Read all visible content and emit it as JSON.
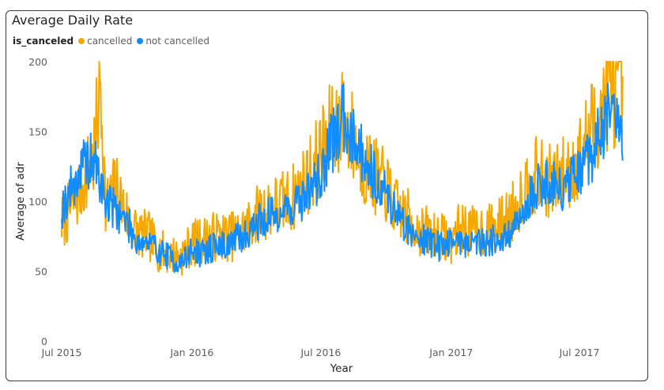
{
  "chart_data": {
    "type": "line",
    "title": "Average Daily Rate",
    "xlabel": "Year",
    "ylabel": "Average of adr",
    "ylim": [
      0,
      200
    ],
    "yticks": [
      "0",
      "50",
      "100",
      "150",
      "200"
    ],
    "xticks": [
      "Jul 2015",
      "Jan 2016",
      "Jul 2016",
      "Jan 2017",
      "Jul 2017"
    ],
    "xlim": [
      "2015-07-01",
      "2017-08-31"
    ],
    "legend": {
      "title": "is_canceled",
      "position": "top-left"
    },
    "grid": false,
    "series": [
      {
        "name": "cancelled",
        "color": "#F5A800",
        "x": [
          "2015-07-01",
          "2015-07-15",
          "2015-08-01",
          "2015-08-15",
          "2015-08-25",
          "2015-09-01",
          "2015-09-15",
          "2015-10-01",
          "2015-10-15",
          "2015-11-01",
          "2015-11-15",
          "2015-12-01",
          "2015-12-15",
          "2016-01-01",
          "2016-01-15",
          "2016-02-01",
          "2016-02-15",
          "2016-03-01",
          "2016-03-15",
          "2016-04-01",
          "2016-04-15",
          "2016-05-01",
          "2016-05-15",
          "2016-06-01",
          "2016-06-15",
          "2016-07-01",
          "2016-07-15",
          "2016-08-01",
          "2016-08-15",
          "2016-09-01",
          "2016-09-15",
          "2016-10-01",
          "2016-10-15",
          "2016-11-01",
          "2016-11-15",
          "2016-12-01",
          "2016-12-15",
          "2017-01-01",
          "2017-01-15",
          "2017-02-01",
          "2017-02-15",
          "2017-03-01",
          "2017-03-15",
          "2017-04-01",
          "2017-04-15",
          "2017-05-01",
          "2017-05-15",
          "2017-06-01",
          "2017-06-15",
          "2017-07-01",
          "2017-07-15",
          "2017-08-01",
          "2017-08-15",
          "2017-08-31"
        ],
        "values": [
          85,
          95,
          115,
          130,
          185,
          95,
          110,
          90,
          78,
          75,
          65,
          62,
          60,
          70,
          72,
          75,
          75,
          75,
          80,
          90,
          95,
          98,
          100,
          108,
          120,
          135,
          150,
          160,
          145,
          125,
          118,
          110,
          95,
          88,
          80,
          78,
          75,
          72,
          82,
          78,
          80,
          80,
          85,
          95,
          110,
          118,
          115,
          115,
          122,
          130,
          150,
          165,
          185,
          168
        ]
      },
      {
        "name": "not cancelled",
        "color": "#118DFF",
        "x": [
          "2015-07-01",
          "2015-07-15",
          "2015-08-01",
          "2015-08-15",
          "2015-09-01",
          "2015-09-15",
          "2015-10-01",
          "2015-10-15",
          "2015-11-01",
          "2015-11-15",
          "2015-12-01",
          "2015-12-15",
          "2016-01-01",
          "2016-01-15",
          "2016-02-01",
          "2016-02-15",
          "2016-03-01",
          "2016-03-15",
          "2016-04-01",
          "2016-04-15",
          "2016-05-01",
          "2016-05-15",
          "2016-06-01",
          "2016-06-15",
          "2016-07-01",
          "2016-07-15",
          "2016-08-01",
          "2016-08-15",
          "2016-09-01",
          "2016-09-15",
          "2016-10-01",
          "2016-10-15",
          "2016-11-01",
          "2016-11-15",
          "2016-12-01",
          "2016-12-15",
          "2017-01-01",
          "2017-01-15",
          "2017-02-01",
          "2017-02-15",
          "2017-03-01",
          "2017-03-15",
          "2017-04-01",
          "2017-04-15",
          "2017-05-01",
          "2017-05-15",
          "2017-06-01",
          "2017-06-15",
          "2017-07-01",
          "2017-07-15",
          "2017-08-01",
          "2017-08-15",
          "2017-08-31"
        ],
        "values": [
          95,
          110,
          125,
          130,
          100,
          95,
          85,
          72,
          70,
          65,
          60,
          55,
          65,
          62,
          68,
          68,
          72,
          75,
          85,
          88,
          92,
          95,
          100,
          108,
          118,
          140,
          160,
          150,
          130,
          118,
          105,
          92,
          80,
          75,
          72,
          68,
          72,
          72,
          70,
          72,
          72,
          72,
          80,
          95,
          110,
          115,
          108,
          112,
          120,
          130,
          150,
          165,
          145
        ]
      }
    ]
  }
}
